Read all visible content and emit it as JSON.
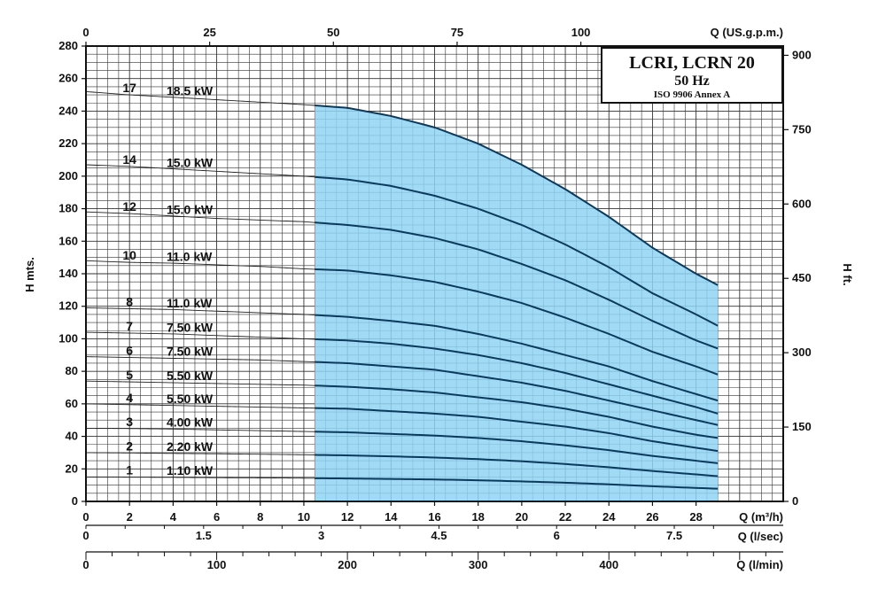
{
  "chart_data": {
    "type": "line",
    "title_box": {
      "title": "LCRI, LCRN 20",
      "frequency": "50 Hz",
      "standard": "ISO 9906 Annex A"
    },
    "ylabel_left": "H mts.",
    "ylabel_right": "H ft.",
    "y_left": {
      "lim": [
        0,
        280
      ],
      "ticks": [
        0,
        20,
        40,
        60,
        80,
        100,
        120,
        140,
        160,
        180,
        200,
        220,
        240,
        260,
        280
      ]
    },
    "y_right": {
      "ticks": [
        0,
        150,
        300,
        450,
        600,
        750,
        900
      ]
    },
    "x_m3h": {
      "label": "Q (m³/h)",
      "lim": [
        0,
        32
      ],
      "ticks": [
        0,
        2,
        4,
        6,
        8,
        10,
        12,
        14,
        16,
        18,
        20,
        22,
        24,
        26,
        28
      ]
    },
    "x_gpm": {
      "label": "Q (US.g.p.m.)",
      "ticks": [
        0,
        25,
        50,
        75,
        100
      ]
    },
    "x_lsec": {
      "label": "Q (l/sec)",
      "ticks": [
        "0",
        "1.5",
        "3",
        "4.5",
        "6",
        "7.5"
      ]
    },
    "x_lmin": {
      "label": "Q (l/min)",
      "ticks": [
        0,
        100,
        200,
        300,
        400
      ]
    },
    "operating_range": {
      "q_min": 10.5,
      "q_max": 29
    },
    "x": [
      0,
      2,
      4,
      6,
      8,
      10,
      12,
      14,
      16,
      18,
      20,
      22,
      24,
      26,
      28,
      29
    ],
    "series": [
      {
        "stages": "17",
        "power": "18.5 kW",
        "values": [
          252,
          250,
          248.5,
          247,
          245.5,
          244,
          242,
          237,
          230,
          220,
          207,
          192,
          175,
          156,
          140,
          133
        ]
      },
      {
        "stages": "14",
        "power": "15.0 kW",
        "values": [
          207,
          206,
          204.5,
          203,
          201.5,
          200,
          198,
          194,
          188,
          180,
          170,
          158,
          144,
          128,
          115,
          108
        ]
      },
      {
        "stages": "12",
        "power": "15.0 kW",
        "values": [
          178,
          177,
          175.5,
          174,
          173,
          172,
          170,
          167,
          162,
          155,
          146,
          136,
          124,
          111,
          99,
          94
        ]
      },
      {
        "stages": "10",
        "power": "11.0 kW",
        "values": [
          148,
          147,
          146.5,
          145.5,
          144.5,
          143,
          142,
          139,
          135,
          129,
          122,
          113,
          103,
          92,
          83,
          78
        ]
      },
      {
        "stages": "8",
        "power": "11.0 kW",
        "values": [
          119,
          118.5,
          118,
          117,
          116,
          115,
          113.5,
          111,
          108,
          103,
          97,
          90,
          83,
          74,
          66,
          62
        ]
      },
      {
        "stages": "7",
        "power": "7.50 kW",
        "values": [
          104,
          103.5,
          103,
          102,
          101,
          100,
          99,
          97,
          94,
          90,
          85,
          79,
          72,
          65,
          58,
          54
        ]
      },
      {
        "stages": "6",
        "power": "7.50 kW",
        "values": [
          89,
          88.5,
          88,
          87.5,
          87,
          86,
          85,
          83,
          81,
          77,
          73,
          68,
          62,
          56,
          50,
          47
        ]
      },
      {
        "stages": "5",
        "power": "5.50 kW",
        "values": [
          74,
          73.5,
          73,
          72.5,
          72,
          71.5,
          70.5,
          69,
          67,
          64,
          61,
          57,
          52,
          46,
          41,
          39
        ]
      },
      {
        "stages": "4",
        "power": "5.50 kW",
        "values": [
          60,
          59.5,
          59,
          58.5,
          58,
          57.5,
          57,
          55.5,
          54,
          52,
          49,
          46,
          42,
          37,
          33,
          31
        ]
      },
      {
        "stages": "3",
        "power": "4.00 kW",
        "values": [
          45,
          44.8,
          44.5,
          44,
          43.5,
          43,
          42.5,
          41.5,
          40.5,
          39,
          37,
          34.5,
          31.5,
          28,
          25,
          23.5
        ]
      },
      {
        "stages": "2",
        "power": "2.20 kW",
        "values": [
          30,
          29.8,
          29.5,
          29.3,
          29,
          28.7,
          28.3,
          27.7,
          27,
          26,
          24.7,
          23,
          21,
          18.7,
          16.6,
          15.5
        ]
      },
      {
        "stages": "1",
        "power": "1.10 kW",
        "values": [
          15,
          14.9,
          14.8,
          14.6,
          14.5,
          14.3,
          14.1,
          13.8,
          13.5,
          13,
          12.3,
          11.5,
          10.5,
          9.3,
          8.3,
          7.8
        ]
      }
    ],
    "grid": true,
    "colors": {
      "fill": "#8fd3f2",
      "curve": "#0b3a5c",
      "grid": "#333333"
    }
  }
}
